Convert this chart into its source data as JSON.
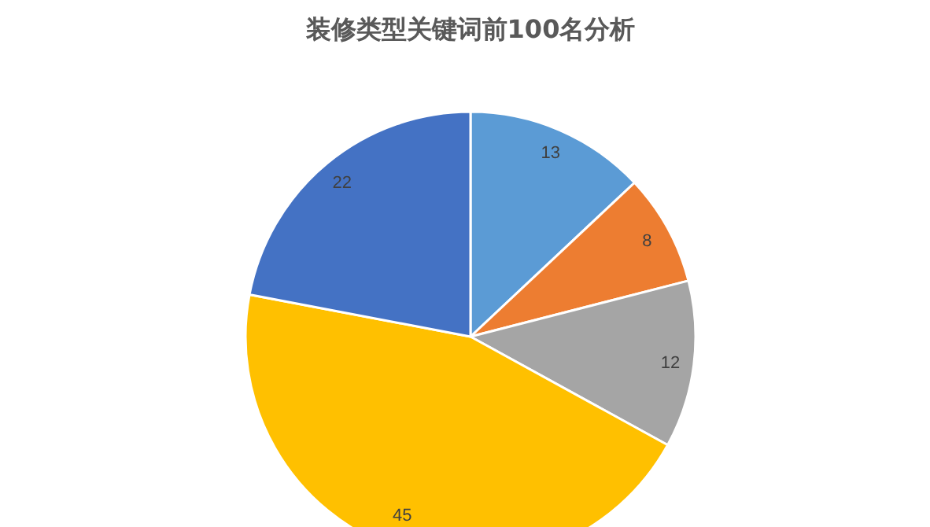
{
  "chart_data": {
    "type": "pie",
    "title": "装修类型关键词前100名分析",
    "categories": [
      null,
      null,
      null,
      null,
      null
    ],
    "values": [
      13,
      8,
      12,
      45,
      22
    ],
    "colors": [
      "#5b9bd5",
      "#ed7d31",
      "#a5a5a5",
      "#ffc000",
      "#4472c4"
    ],
    "data_labels": true
  }
}
